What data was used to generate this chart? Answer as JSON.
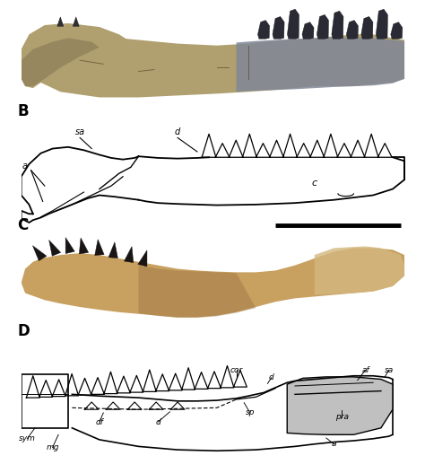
{
  "figure_width": 4.74,
  "figure_height": 5.27,
  "dpi": 100,
  "background_color": "#ffffff",
  "line_color": "#000000",
  "gray_fill": "#c0c0c0",
  "panel_positions": {
    "A": [
      0.05,
      0.755,
      0.92,
      0.235
    ],
    "B": [
      0.05,
      0.515,
      0.92,
      0.23
    ],
    "C": [
      0.05,
      0.285,
      0.92,
      0.22
    ],
    "D": [
      0.05,
      0.01,
      0.92,
      0.27
    ]
  },
  "fossil_A_colors": {
    "bone_tan": "#b0a070",
    "bone_dark": "#807050",
    "teeth_dark": "#404040",
    "teeth_blue": "#708090",
    "shadow": "#5a5040"
  },
  "fossil_C_colors": {
    "bone_tan": "#c8a060",
    "bone_dark": "#987040",
    "teeth_dark": "#303030",
    "bone_light": "#d4b880"
  }
}
